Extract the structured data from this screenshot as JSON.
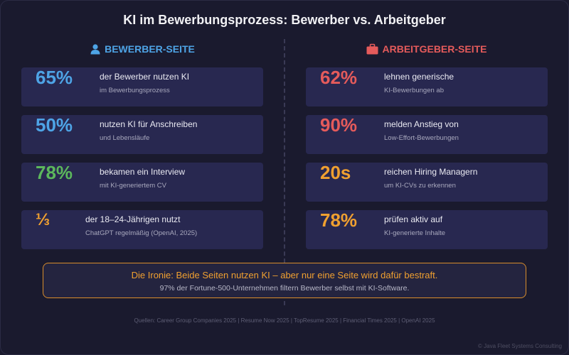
{
  "title": "KI im Bewerbungsprozess: Bewerber vs. Arbeitgeber",
  "colors": {
    "background": "#1a1a2e",
    "card": "#282850",
    "blue": "#4ea4e6",
    "green": "#5cb85c",
    "orange": "#f0a030",
    "red": "#e55b5b"
  },
  "left": {
    "heading": "BEWERBER-SEITE",
    "icon": "person-icon",
    "cards": [
      {
        "stat": "65%",
        "line1": "der Bewerber nutzen KI",
        "line2": "im Bewerbungsprozess"
      },
      {
        "stat": "50%",
        "line1": "nutzen KI für Anschreiben",
        "line2": "und Lebensläufe"
      },
      {
        "stat": "78%",
        "line1": "bekamen ein Interview",
        "line2": "mit KI-generiertem CV"
      },
      {
        "stat": "⅓",
        "line1": "der 18–24-Jährigen nutzt",
        "line2": "ChatGPT regelmäßig (OpenAI, 2025)"
      }
    ]
  },
  "right": {
    "heading": "ARBEITGEBER-SEITE",
    "icon": "briefcase-icon",
    "cards": [
      {
        "stat": "62%",
        "line1": "lehnen generische",
        "line2": "KI-Bewerbungen ab"
      },
      {
        "stat": "90%",
        "line1": "melden Anstieg von",
        "line2": "Low-Effort-Bewerbungen"
      },
      {
        "stat": "20s",
        "line1": "reichen Hiring Managern",
        "line2": "um KI-CVs zu erkennen"
      },
      {
        "stat": "78%",
        "line1": "prüfen aktiv auf",
        "line2": "KI-generierte Inhalte"
      }
    ]
  },
  "irony": {
    "headline": "Die Ironie: Beide Seiten nutzen KI – aber nur eine Seite wird dafür bestraft.",
    "subline": "97% der Fortune-500-Unternehmen filtern Bewerber selbst mit KI-Software."
  },
  "sources": "Quellen: Career Group Companies 2025 | Resume Now 2025 | TopResume 2025 | Financial Times 2025 | OpenAI 2025",
  "copyright": "© Java Fleet Systems Consulting"
}
